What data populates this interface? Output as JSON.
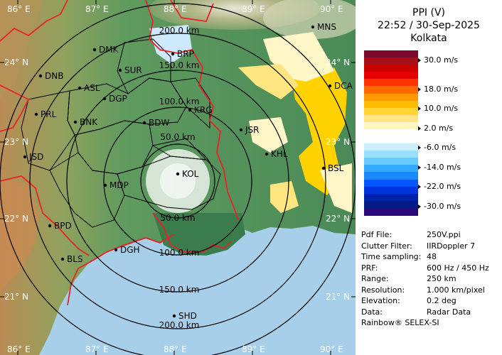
{
  "header": {
    "product": "PPI (V)",
    "datetime": "22:52 / 30-Sep-2025",
    "station": "Kolkata"
  },
  "color_scale": {
    "labels": [
      "30.0 m/s",
      "18.0 m/s",
      "10.0 m/s",
      "2.0 m/s",
      "-6.0 m/s",
      "-14.0 m/s",
      "-22.0 m/s",
      "-30.0 m/s"
    ],
    "colors": [
      "#7b0a2e",
      "#a50f15",
      "#cc0000",
      "#e60000",
      "#ff3300",
      "#ff6a00",
      "#ff9900",
      "#ffbb00",
      "#ffd633",
      "#ffe680",
      "#fff5c0",
      "#ffffff",
      "#ffffff",
      "#c8f0ff",
      "#99e0ff",
      "#66ccff",
      "#33aaff",
      "#1a88ff",
      "#0055ff",
      "#0033dd",
      "#0022aa",
      "#001a88",
      "#2a0a7a"
    ]
  },
  "info": [
    {
      "key": "Pdf File:",
      "value": "250V.ppi"
    },
    {
      "key": "Clutter Filter:",
      "value": "IIRDoppler 7"
    },
    {
      "key": "Time sampling:",
      "value": "48"
    },
    {
      "key": "PRF:",
      "value": "600 Hz / 450 Hz"
    },
    {
      "key": "Range:",
      "value": "250 km"
    },
    {
      "key": "Resolution:",
      "value": "1.000 km/pixel"
    },
    {
      "key": "Elevation:",
      "value": "0.2 deg"
    },
    {
      "key": "Data:",
      "value": "Radar Data"
    }
  ],
  "footer": "Rainbow® SELEX-SI",
  "map": {
    "lon_labels": [
      "86° E",
      "87° E",
      "88° E",
      "89° E",
      "90° E"
    ],
    "lat_labels": [
      "24° N",
      "23° N",
      "22° N",
      "21° N"
    ],
    "range_labels": [
      "50.0 km",
      "100.0 km",
      "150.0 km",
      "200.0 km"
    ],
    "stations": [
      "MNS",
      "DMK",
      "BRP",
      "SUR",
      "DNB",
      "ASL",
      "DGP",
      "DCA",
      "KRG",
      "PRL",
      "BNK",
      "BDW",
      "JSR",
      "KHL",
      "JSD",
      "KOL",
      "BSL",
      "MDP",
      "BPD",
      "DGH",
      "BLS",
      "SHD"
    ],
    "colors": {
      "sea": "#a8cfe9",
      "land_low": "#4f8f5a",
      "land_high": "#c98a52",
      "border_state": "#e8222a",
      "border_district": "#000000",
      "range_ring": "#000000",
      "echo_positive": "#ffd200",
      "echo_light": "#fff7c8",
      "echo_near_zero": "#ffffff"
    }
  }
}
